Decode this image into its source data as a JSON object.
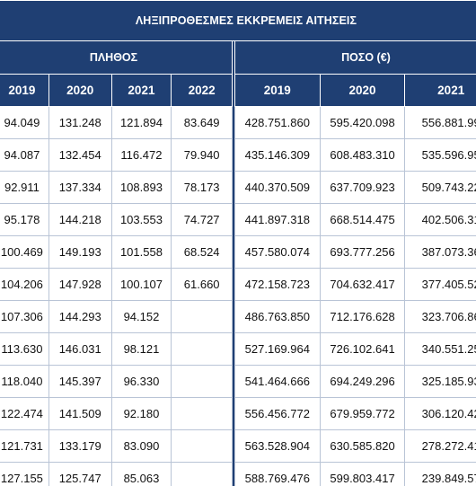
{
  "table": {
    "title": "ΛΗΞΙΠΡΟΘΕΣΜΕΣ ΕΚΚΡΕΜΕΙΣ ΑΙΤΗΣΕΙΣ",
    "group_count": "ΠΛΗΘΟΣ",
    "group_amount": "ΠΟΣΟ (€)",
    "count_years": [
      "2019",
      "2020",
      "2021",
      "2022"
    ],
    "amount_years": [
      "2019",
      "2020",
      "2021"
    ],
    "rows": [
      {
        "count": [
          "94.049",
          "131.248",
          "121.894",
          "83.649"
        ],
        "amount": [
          "428.751.860",
          "595.420.098",
          "556.881.99"
        ]
      },
      {
        "count": [
          "94.087",
          "132.454",
          "116.472",
          "79.940"
        ],
        "amount": [
          "435.146.309",
          "608.483.310",
          "535.596.95"
        ]
      },
      {
        "count": [
          "92.911",
          "137.334",
          "108.893",
          "78.173"
        ],
        "amount": [
          "440.370.509",
          "637.709.923",
          "509.743.22"
        ]
      },
      {
        "count": [
          "95.178",
          "144.218",
          "103.553",
          "74.727"
        ],
        "amount": [
          "441.897.318",
          "668.514.475",
          "402.506.31"
        ]
      },
      {
        "count": [
          "100.469",
          "149.193",
          "101.558",
          "68.524"
        ],
        "amount": [
          "457.580.074",
          "693.777.256",
          "387.073.36"
        ]
      },
      {
        "count": [
          "104.206",
          "147.928",
          "100.107",
          "61.660"
        ],
        "amount": [
          "472.158.723",
          "704.632.417",
          "377.405.52"
        ]
      },
      {
        "count": [
          "107.306",
          "144.293",
          "94.152",
          ""
        ],
        "amount": [
          "486.763.850",
          "712.176.628",
          "323.706.86"
        ]
      },
      {
        "count": [
          "113.630",
          "146.031",
          "98.121",
          ""
        ],
        "amount": [
          "527.169.964",
          "726.102.641",
          "340.551.25"
        ]
      },
      {
        "count": [
          "118.040",
          "145.397",
          "96.330",
          ""
        ],
        "amount": [
          "541.464.666",
          "694.249.296",
          "325.185.93"
        ]
      },
      {
        "count": [
          "122.474",
          "141.509",
          "92.180",
          ""
        ],
        "amount": [
          "556.456.772",
          "679.959.772",
          "306.120.42"
        ]
      },
      {
        "count": [
          "121.731",
          "133.179",
          "83.090",
          ""
        ],
        "amount": [
          "563.528.904",
          "630.585.820",
          "278.272.41"
        ]
      },
      {
        "count": [
          "127.155",
          "125.747",
          "85.063",
          ""
        ],
        "amount": [
          "588.769.476",
          "599.803.417",
          "239.849.57"
        ]
      }
    ]
  },
  "colors": {
    "header_bg": "#1f3f73",
    "header_text": "#ffffff",
    "grid": "#b9c4d6"
  }
}
